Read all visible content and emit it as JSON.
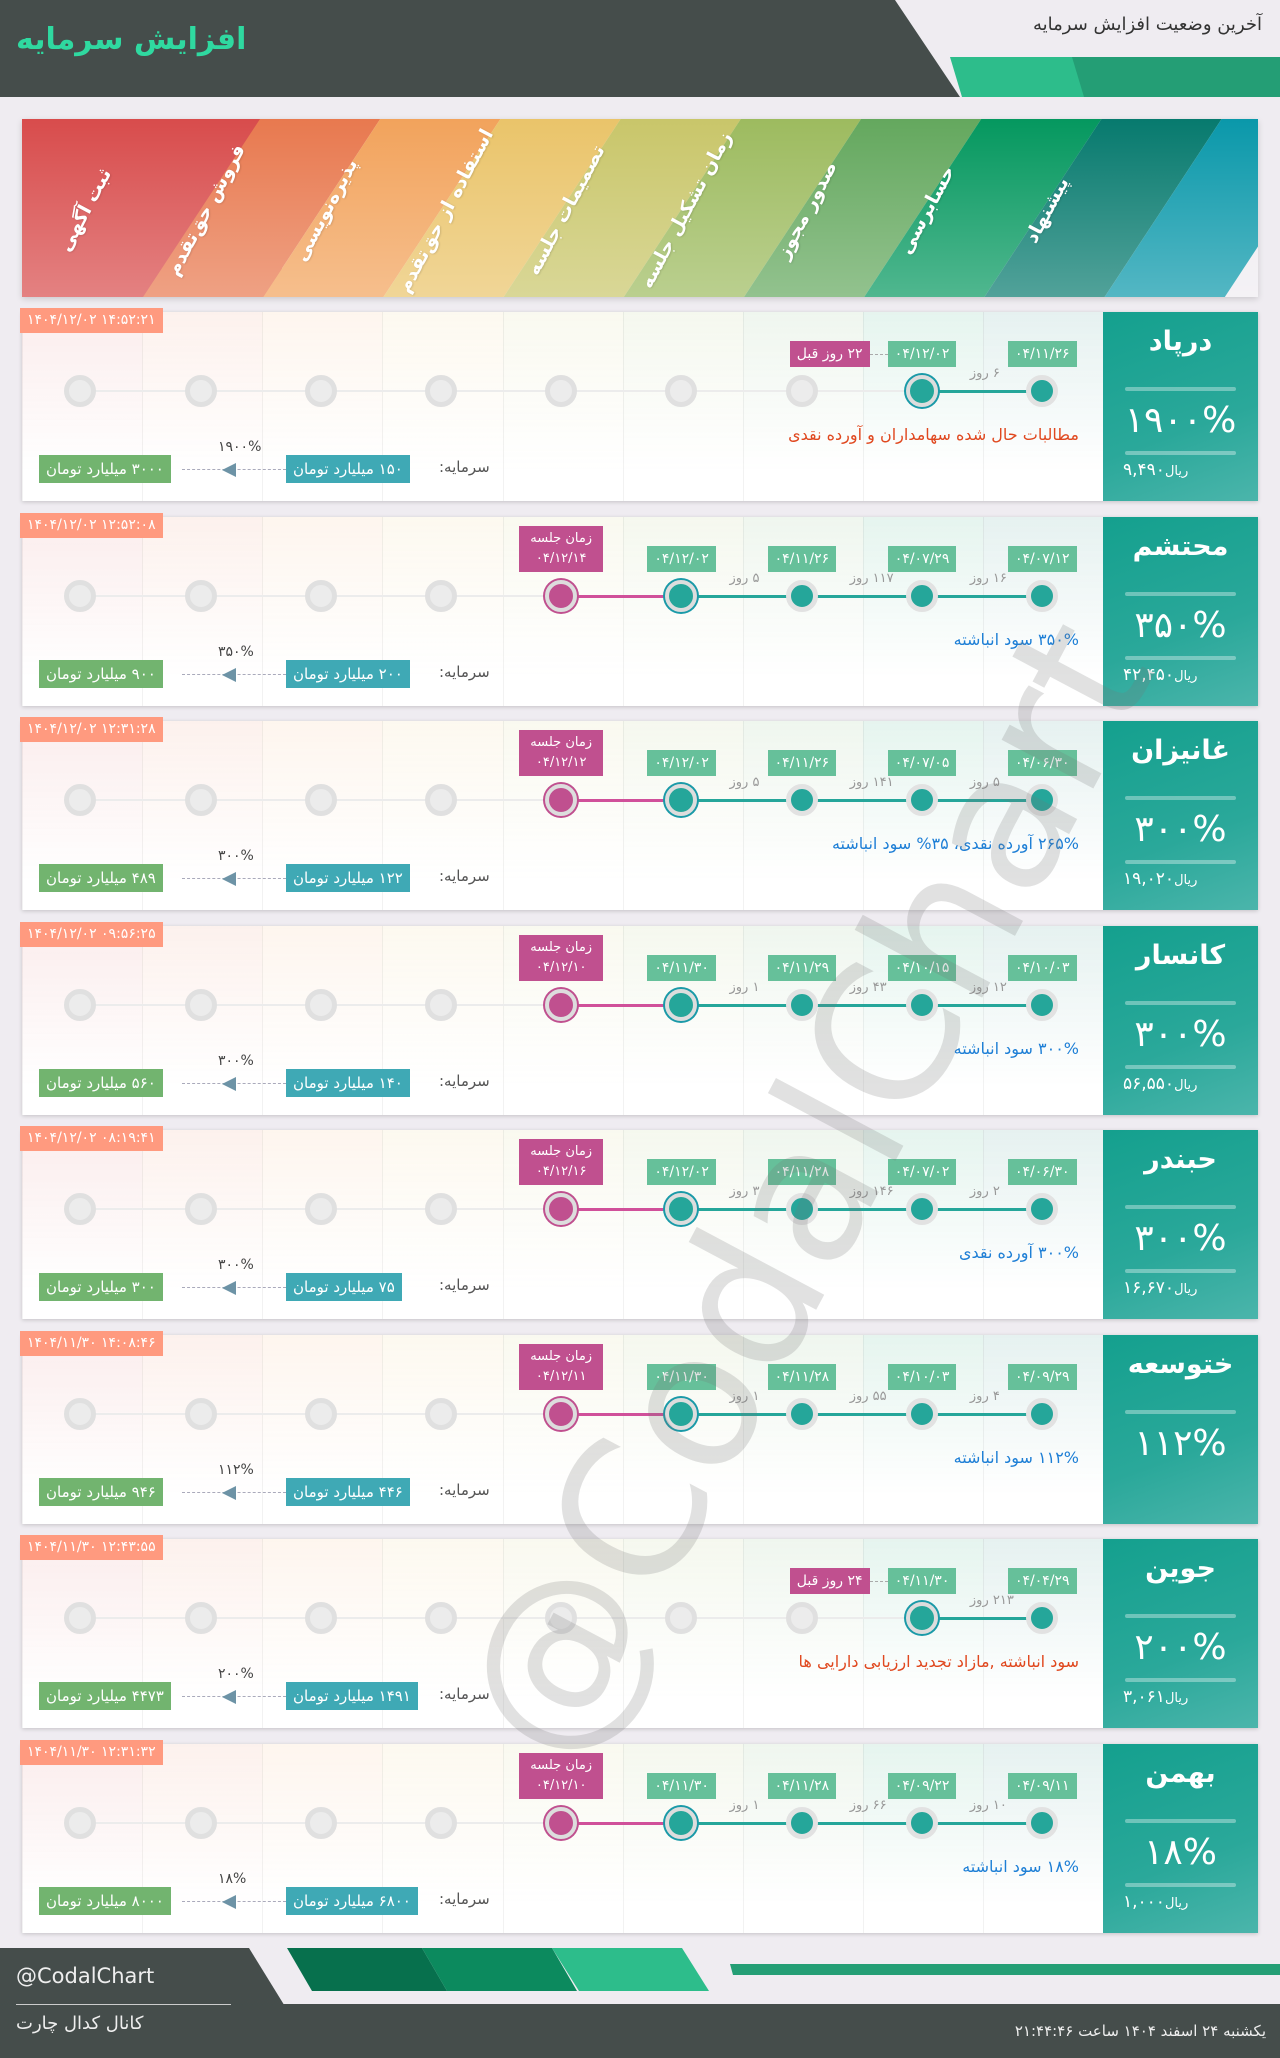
{
  "header": {
    "title": "افزایش سرمایه",
    "subtitle": "آخرین وضعیت افزایش سرمایه"
  },
  "colors": {
    "accent": "#2fd9a0",
    "dark": "#454d4b",
    "done": "#25a69a",
    "meeting": "#c0508f",
    "date_badge": "#66c09a",
    "timestamp_badge": "#ff9a7f",
    "capital_from": "#3fa9b5",
    "capital_to": "#72b46f",
    "desc_red": "#e0481f",
    "desc_blue": "#1e7fd6"
  },
  "stages": [
    {
      "label": "پیشنهاد",
      "color": "#077a6e"
    },
    {
      "label": "حسابرسی",
      "color": "#05985f"
    },
    {
      "label": "صدور مجوز",
      "color": "#64a85e"
    },
    {
      "label": "زمان تشکیل جلسه",
      "color": "#9dbb5f"
    },
    {
      "label": "تصمیمات جلسه",
      "color": "#c9c66a"
    },
    {
      "label": "استفاده از حق‌تقدم",
      "color": "#eac46a"
    },
    {
      "label": "پذیره‌نویسی",
      "color": "#f2a35c"
    },
    {
      "label": "فروش حق‌تقدم",
      "color": "#e8794f"
    },
    {
      "label": "ثبت آگهی",
      "color": "#d84c4c"
    }
  ],
  "capital_label": "سرمایه:",
  "meeting_label": "زمان جلسه",
  "cards": [
    {
      "name": "درپاد",
      "percent": "۱۹۰۰%",
      "price": "۹,۴۹۰",
      "price_unit": "ریال",
      "timestamp": "۱۴۰۴/۱۲/۰۲ ۱۴:۵۲:۲۱",
      "states": [
        "done",
        "current",
        "empty",
        "empty",
        "empty",
        "empty",
        "empty",
        "empty",
        "empty"
      ],
      "dates": [
        "۰۴/۱۱/۲۶",
        "۰۴/۱۲/۰۲"
      ],
      "gaps": [
        "۶ روز"
      ],
      "ago": "۲۲ روز قبل",
      "meeting_date": null,
      "description": "مطالبات حال شده سهامداران و آورده نقدی",
      "desc_color": "red",
      "capital": {
        "from": "۱۵۰ میلیارد تومان",
        "to": "۳۰۰۰ میلیارد تومان",
        "percent": "۱۹۰۰%"
      }
    },
    {
      "name": "محتشم",
      "percent": "۳۵۰%",
      "price": "۴۲,۴۵۰",
      "price_unit": "ریال",
      "timestamp": "۱۴۰۴/۱۲/۰۲ ۱۲:۵۲:۰۸",
      "states": [
        "done",
        "done",
        "done",
        "current",
        "meeting",
        "empty",
        "empty",
        "empty",
        "empty"
      ],
      "dates": [
        "۰۴/۰۷/۱۲",
        "۰۴/۰۷/۲۹",
        "۰۴/۱۱/۲۶",
        "۰۴/۱۲/۰۲"
      ],
      "gaps": [
        "۱۶ روز",
        "۱۱۷ روز",
        "۵ روز"
      ],
      "ago": null,
      "meeting_date": "۰۴/۱۲/۱۴",
      "description": "۳۵۰% سود انباشته",
      "desc_color": "blue",
      "capital": {
        "from": "۲۰۰ میلیارد تومان",
        "to": "۹۰۰ میلیارد تومان",
        "percent": "۳۵۰%"
      }
    },
    {
      "name": "غانیزان",
      "percent": "۳۰۰%",
      "price": "۱۹,۰۲۰",
      "price_unit": "ریال",
      "timestamp": "۱۴۰۴/۱۲/۰۲ ۱۲:۳۱:۲۸",
      "states": [
        "done",
        "done",
        "done",
        "current",
        "meeting",
        "empty",
        "empty",
        "empty",
        "empty"
      ],
      "dates": [
        "۰۴/۰۶/۳۰",
        "۰۴/۰۷/۰۵",
        "۰۴/۱۱/۲۶",
        "۰۴/۱۲/۰۲"
      ],
      "gaps": [
        "۵ روز",
        "۱۴۱ روز",
        "۵ روز"
      ],
      "ago": null,
      "meeting_date": "۰۴/۱۲/۱۲",
      "description": "۲۶۵% آورده نقدی، ۳۵% سود انباشته",
      "desc_color": "blue",
      "capital": {
        "from": "۱۲۲ میلیارد تومان",
        "to": "۴۸۹ میلیارد تومان",
        "percent": "۳۰۰%"
      }
    },
    {
      "name": "کانسار",
      "percent": "۳۰۰%",
      "price": "۵۶,۵۵۰",
      "price_unit": "ریال",
      "timestamp": "۱۴۰۴/۱۲/۰۲ ۰۹:۵۶:۲۵",
      "states": [
        "done",
        "done",
        "done",
        "current",
        "meeting",
        "empty",
        "empty",
        "empty",
        "empty"
      ],
      "dates": [
        "۰۴/۱۰/۰۳",
        "۰۴/۱۰/۱۵",
        "۰۴/۱۱/۲۹",
        "۰۴/۱۱/۳۰"
      ],
      "gaps": [
        "۱۲ روز",
        "۴۳ روز",
        "۱ روز"
      ],
      "ago": null,
      "meeting_date": "۰۴/۱۲/۱۰",
      "description": "۳۰۰% سود انباشته",
      "desc_color": "blue",
      "capital": {
        "from": "۱۴۰ میلیارد تومان",
        "to": "۵۶۰ میلیارد تومان",
        "percent": "۳۰۰%"
      }
    },
    {
      "name": "حبندر",
      "percent": "۳۰۰%",
      "price": "۱۶,۶۷۰",
      "price_unit": "ریال",
      "timestamp": "۱۴۰۴/۱۲/۰۲ ۰۸:۱۹:۴۱",
      "states": [
        "done",
        "done",
        "done",
        "current",
        "meeting",
        "empty",
        "empty",
        "empty",
        "empty"
      ],
      "dates": [
        "۰۴/۰۶/۳۰",
        "۰۴/۰۷/۰۲",
        "۰۴/۱۱/۲۸",
        "۰۴/۱۲/۰۲"
      ],
      "gaps": [
        "۲ روز",
        "۱۴۶ روز",
        "۳ روز"
      ],
      "ago": null,
      "meeting_date": "۰۴/۱۲/۱۶",
      "description": "۳۰۰% آورده نقدی",
      "desc_color": "blue",
      "capital": {
        "from": "۷۵ میلیارد تومان",
        "to": "۳۰۰ میلیارد تومان",
        "percent": "۳۰۰%"
      }
    },
    {
      "name": "ختوسعه",
      "percent": "۱۱۲%",
      "price": null,
      "price_unit": null,
      "timestamp": "۱۴۰۴/۱۱/۳۰ ۱۴:۰۸:۴۶",
      "states": [
        "done",
        "done",
        "done",
        "current",
        "meeting",
        "empty",
        "empty",
        "empty",
        "empty"
      ],
      "dates": [
        "۰۴/۰۹/۲۹",
        "۰۴/۱۰/۰۳",
        "۰۴/۱۱/۲۸",
        "۰۴/۱۱/۳۰"
      ],
      "gaps": [
        "۴ روز",
        "۵۵ روز",
        "۱ روز"
      ],
      "ago": null,
      "meeting_date": "۰۴/۱۲/۱۱",
      "description": "۱۱۲% سود انباشته",
      "desc_color": "blue",
      "capital": {
        "from": "۴۴۶ میلیارد تومان",
        "to": "۹۴۶ میلیارد تومان",
        "percent": "۱۱۲%"
      }
    },
    {
      "name": "جوین",
      "percent": "۲۰۰%",
      "price": "۳,۰۶۱",
      "price_unit": "ریال",
      "timestamp": "۱۴۰۴/۱۱/۳۰ ۱۲:۴۳:۵۵",
      "states": [
        "done",
        "current",
        "empty",
        "empty",
        "empty",
        "empty",
        "empty",
        "empty",
        "empty"
      ],
      "dates": [
        "۰۴/۰۴/۲۹",
        "۰۴/۱۱/۳۰"
      ],
      "gaps": [
        "۲۱۳ روز"
      ],
      "ago": "۲۴ روز قبل",
      "meeting_date": null,
      "description": "سود انباشته ,مازاد تجدید ارزیابی دارایی ها",
      "desc_color": "red",
      "capital": {
        "from": "۱۴۹۱ میلیارد تومان",
        "to": "۴۴۷۳ میلیارد تومان",
        "percent": "۲۰۰%"
      }
    },
    {
      "name": "بهمن",
      "percent": "۱۸%",
      "price": "۱,۰۰۰",
      "price_unit": "ریال",
      "timestamp": "۱۴۰۴/۱۱/۳۰ ۱۲:۳۱:۳۲",
      "states": [
        "done",
        "done",
        "done",
        "current",
        "meeting",
        "empty",
        "empty",
        "empty",
        "empty"
      ],
      "dates": [
        "۰۴/۰۹/۱۱",
        "۰۴/۰۹/۲۲",
        "۰۴/۱۱/۲۸",
        "۰۴/۱۱/۳۰"
      ],
      "gaps": [
        "۱۰ روز",
        "۶۶ روز",
        "۱ روز"
      ],
      "ago": null,
      "meeting_date": "۰۴/۱۲/۱۰",
      "description": "۱۸% سود انباشته",
      "desc_color": "blue",
      "capital": {
        "from": "۶۸۰۰ میلیارد تومان",
        "to": "۸۰۰۰ میلیارد تومان",
        "percent": "۱۸%"
      }
    }
  ],
  "watermark": "@CodalChart",
  "footer": {
    "handle": "@CodalChart",
    "channel": "کانال کدال چارت",
    "datetime": "یکشنبه ۲۴ اسفند ۱۴۰۴ ساعت ۲۱:۴۴:۴۶"
  }
}
